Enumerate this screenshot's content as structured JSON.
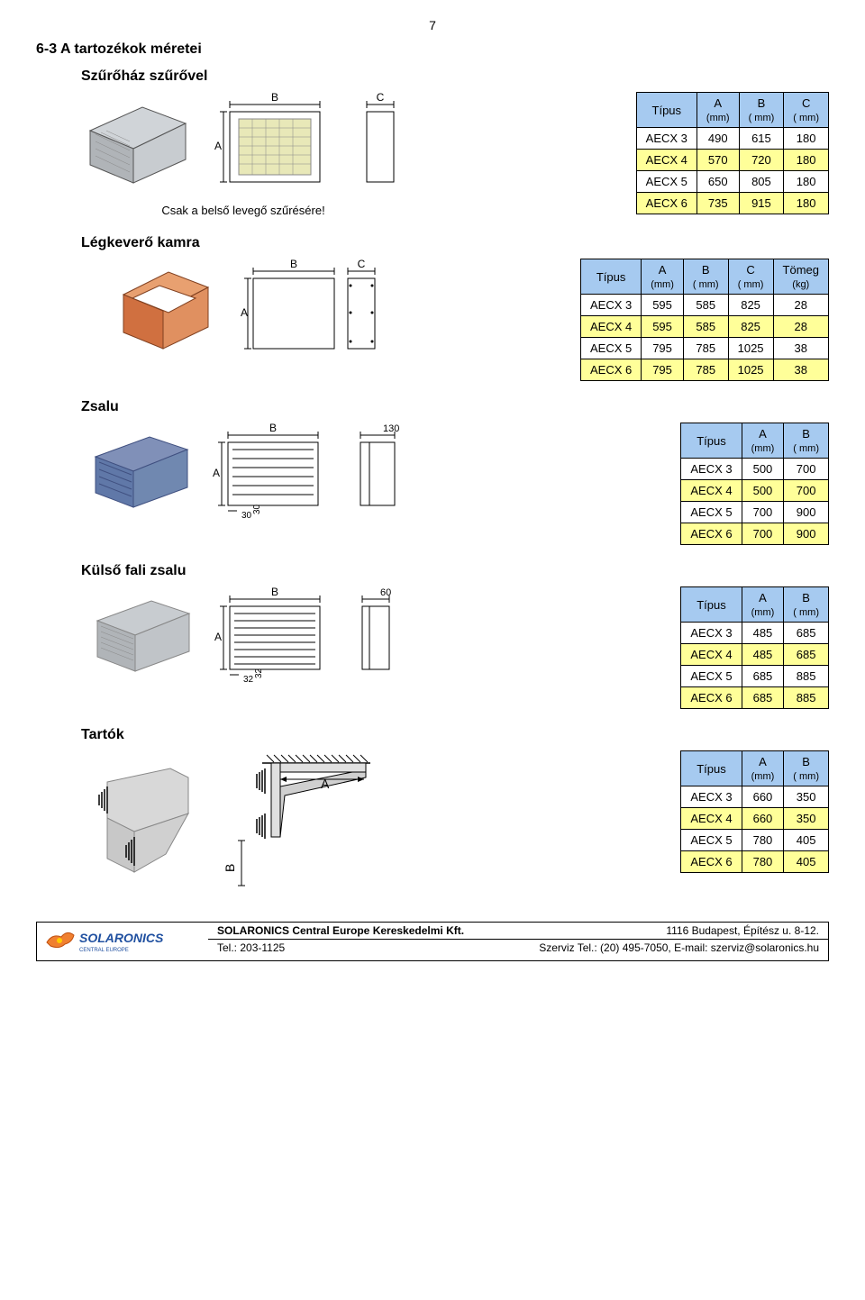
{
  "page_number": "7",
  "section_title": "6-3 A tartozékok méretei",
  "sections": {
    "filter": {
      "title": "Szűrőház szűrővel",
      "caption": "Csak a belső levegő szűrésére!",
      "columns": [
        "Típus",
        "A\n(mm)",
        "B\n( mm)",
        "C\n( mm)"
      ],
      "rows": [
        [
          "AECX 3",
          "490",
          "615",
          "180"
        ],
        [
          "AECX 4",
          "570",
          "720",
          "180"
        ],
        [
          "AECX 5",
          "650",
          "805",
          "180"
        ],
        [
          "AECX 6",
          "735",
          "915",
          "180"
        ]
      ]
    },
    "mixing": {
      "title": "Légkeverő kamra",
      "columns": [
        "Típus",
        "A\n(mm)",
        "B\n( mm)",
        "C\n( mm)",
        "Tömeg\n(kg)"
      ],
      "rows": [
        [
          "AECX 3",
          "595",
          "585",
          "825",
          "28"
        ],
        [
          "AECX 4",
          "595",
          "585",
          "825",
          "28"
        ],
        [
          "AECX 5",
          "795",
          "785",
          "1025",
          "38"
        ],
        [
          "AECX 6",
          "795",
          "785",
          "1025",
          "38"
        ]
      ]
    },
    "zsalu": {
      "title": "Zsalu",
      "columns": [
        "Típus",
        "A\n(mm)",
        "B\n( mm)"
      ],
      "rows": [
        [
          "AECX 3",
          "500",
          "700"
        ],
        [
          "AECX 4",
          "500",
          "700"
        ],
        [
          "AECX 5",
          "700",
          "900"
        ],
        [
          "AECX 6",
          "700",
          "900"
        ]
      ]
    },
    "kulso": {
      "title": "Külső fali zsalu",
      "columns": [
        "Típus",
        "A\n(mm)",
        "B\n( mm)"
      ],
      "rows": [
        [
          "AECX 3",
          "485",
          "685"
        ],
        [
          "AECX 4",
          "485",
          "685"
        ],
        [
          "AECX 5",
          "685",
          "885"
        ],
        [
          "AECX 6",
          "685",
          "885"
        ]
      ]
    },
    "tartok": {
      "title": "Tartók",
      "columns": [
        "Típus",
        "A\n(mm)",
        "B\n( mm)"
      ],
      "rows": [
        [
          "AECX 3",
          "660",
          "350"
        ],
        [
          "AECX 4",
          "660",
          "350"
        ],
        [
          "AECX 5",
          "780",
          "405"
        ],
        [
          "AECX 6",
          "780",
          "405"
        ]
      ]
    }
  },
  "footer": {
    "logo_main": "SOLARONICS",
    "logo_sub": "CENTRAL EUROPE",
    "company": "SOLARONICS Central Europe Kereskedelmi Kft.",
    "address": "1116 Budapest, Építész u. 8-12.",
    "tel": "Tel.: 203-1125",
    "serv": "Szerviz Tel.: (20) 495-7050, E-mail: szerviz@solaronics.hu"
  },
  "colors": {
    "header_bg": "#a6caf0",
    "alt_bg": "#ffff99",
    "diagram_orange": "#e08040",
    "diagram_blue": "#6080b0",
    "diagram_gray": "#cccccc"
  }
}
